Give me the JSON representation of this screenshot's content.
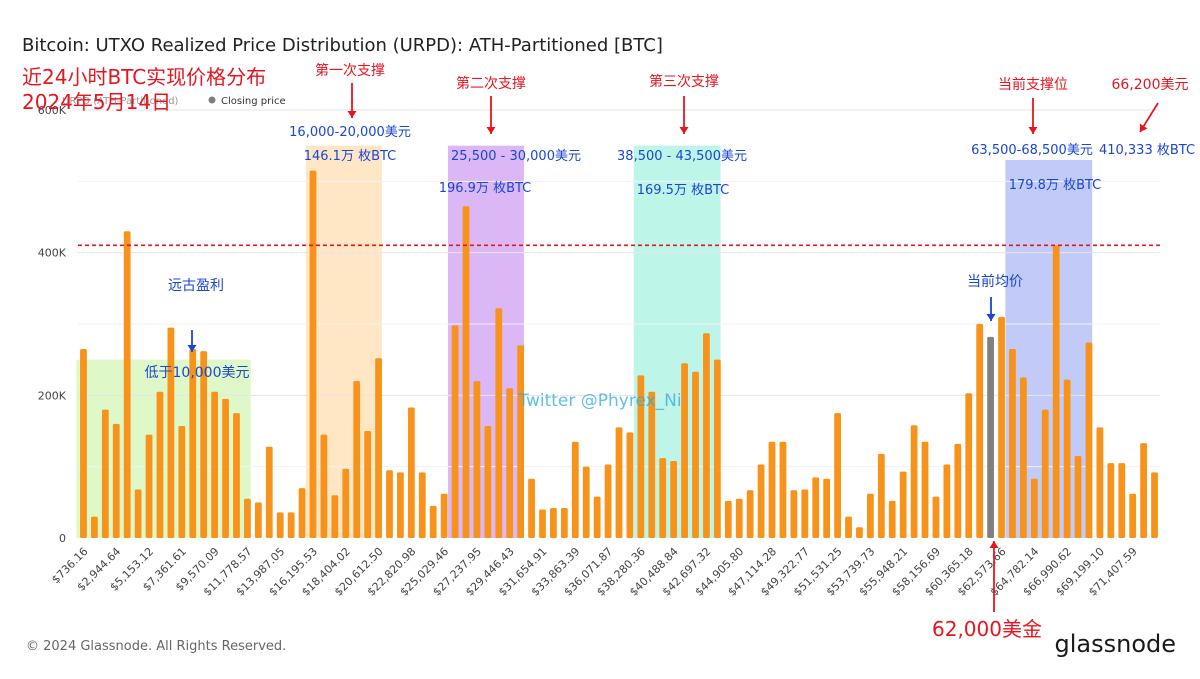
{
  "title": "Bitcoin: UTXO Realized Price Distribution (URPD): ATH-Partitioned [BTC]",
  "legend": {
    "series_label": "URPD (ATH-Partitioned)",
    "closing_label": "Closing price"
  },
  "footer": {
    "copyright": "© 2024 Glassnode. All Rights Reserved.",
    "brand": "glassnode"
  },
  "watermark": "Twitter @Phyrex_Ni",
  "overlay_header": {
    "line1": "近24小时BTC实现价格分布",
    "line2": "2024年5月14日"
  },
  "colors": {
    "bar": "#F7931A",
    "bar_closing": "#808080",
    "ref_line": "#E8141E",
    "red_annotation": "#E8141E",
    "blue_annotation": "#1A46D8",
    "band_low": "#CCF5AA",
    "band_1": "#FFDDB0",
    "band_2": "#CC99F2",
    "band_3": "#A8F2E2",
    "band_current": "#A8B4F5"
  },
  "annotations": {
    "low": {
      "title": "远古盈利",
      "range": "低于10,000美元"
    },
    "band1": {
      "title": "第一次支撑",
      "range": "16,000-20,000美元",
      "amount": "146.1万 枚BTC"
    },
    "band2": {
      "title": "第二次支撑",
      "range": "25,500 - 30,000美元",
      "amount": "196.9万 枚BTC"
    },
    "band3": {
      "title": "第三次支撑",
      "range": "38,500 - 43,500美元",
      "amount": "169.5万 枚BTC"
    },
    "band4": {
      "title": "当前支撑位",
      "range": "63,500-68,500美元",
      "amount": "179.8万 枚BTC"
    },
    "peak": {
      "title": "66,200美元",
      "amount": "410,333 枚BTC"
    },
    "avg": {
      "title": "当前均价"
    },
    "close": {
      "title": "62,000美金"
    }
  },
  "chart_data": {
    "type": "bar",
    "xlabel": "",
    "ylabel": "",
    "ylim": [
      0,
      600000
    ],
    "y_ticks": [
      0,
      200000,
      400000,
      600000
    ],
    "y_tick_labels": [
      "0",
      "200K",
      "400K",
      "600K"
    ],
    "x_tick_labels": [
      "$736.16",
      "$2,944.64",
      "$5,153.12",
      "$7,361.61",
      "$9,570.09",
      "$11,778.57",
      "$13,987.05",
      "$16,195.53",
      "$18,404.02",
      "$20,612.50",
      "$22,820.98",
      "$25,029.46",
      "$27,237.95",
      "$29,446.43",
      "$31,654.91",
      "$33,863.39",
      "$36,071.87",
      "$38,280.36",
      "$40,488.84",
      "$42,697.32",
      "$44,905.80",
      "$47,114.28",
      "$49,322.77",
      "$51,531.25",
      "$53,739.73",
      "$55,948.21",
      "$58,156.69",
      "$60,365.18",
      "$62,573.66",
      "$64,782.14",
      "$66,990.62",
      "$69,199.10",
      "$71,407.59"
    ],
    "values": [
      265000,
      30000,
      180000,
      160000,
      430000,
      68000,
      145000,
      205000,
      295000,
      157000,
      265000,
      262000,
      205000,
      195000,
      175000,
      55000,
      50000,
      128000,
      36000,
      36000,
      70000,
      515000,
      145000,
      60000,
      97000,
      220000,
      150000,
      252000,
      95000,
      92000,
      183000,
      92000,
      45000,
      62000,
      298000,
      465000,
      220000,
      157000,
      322000,
      210000,
      270000,
      83000,
      40000,
      42000,
      42000,
      135000,
      100000,
      58000,
      103000,
      155000,
      148000,
      228000,
      205000,
      112000,
      108000,
      245000,
      233000,
      287000,
      250000,
      52000,
      55000,
      67000,
      103000,
      135000,
      135000,
      67000,
      68000,
      85000,
      83000,
      175000,
      30000,
      15000,
      62000,
      118000,
      52000,
      93000,
      158000,
      135000,
      58000,
      103000,
      132000,
      203000,
      300000,
      282000,
      310000,
      265000,
      225000,
      83000,
      180000,
      410000,
      222000,
      115000,
      274000,
      155000,
      105000,
      105000,
      62000,
      133000,
      92000
    ],
    "closing_index": 83,
    "closing_price_value": 62000,
    "reference_line_value": 410333,
    "legend_position": "top-left"
  }
}
